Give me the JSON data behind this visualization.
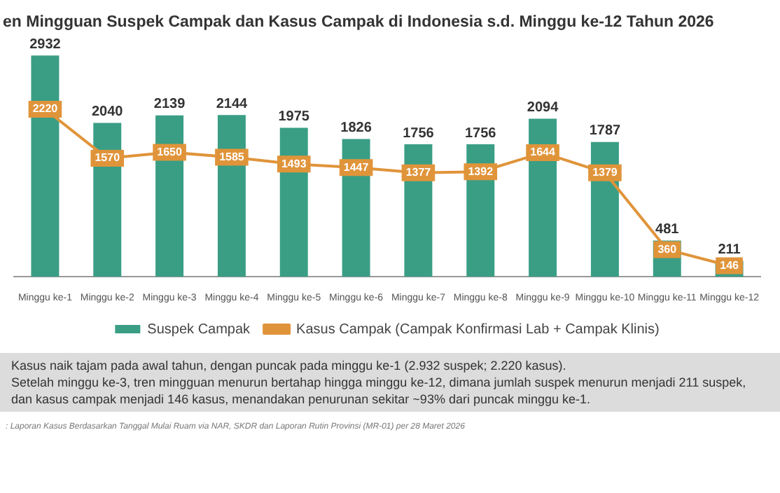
{
  "chart_data": {
    "type": "bar",
    "title": "en Mingguan Suspek Campak dan Kasus Campak di Indonesia s.d. Minggu ke-12 Tahun 2026",
    "categories": [
      "Minggu ke-1",
      "Minggu ke-2",
      "Minggu ke-3",
      "Minggu ke-4",
      "Minggu ke-5",
      "Minggu ke-6",
      "Minggu ke-7",
      "Minggu ke-8",
      "Minggu ke-9",
      "Minggu ke-10",
      "Minggu ke-11",
      "Minggu ke-12"
    ],
    "series": [
      {
        "name": "Suspek Campak",
        "color": "#3a9e85",
        "values": [
          2932,
          2040,
          2139,
          2144,
          1975,
          1826,
          1756,
          1756,
          2094,
          1787,
          481,
          211
        ]
      },
      {
        "name": "Kasus Campak (Campak Konfirmasi Lab + Campak Klinis)",
        "type": "line",
        "marker": "square",
        "color": "#e0943a",
        "values": [
          2220,
          1570,
          1650,
          1585,
          1493,
          1447,
          1377,
          1392,
          1644,
          1379,
          360,
          146
        ]
      }
    ],
    "data_labels": true,
    "legend": "bottom",
    "grid": false,
    "tick_labels": "x",
    "annotations": [
      "Kasus naik tajam pada awal tahun, dengan puncak pada minggu ke-1 (2.932 suspek; 2.220 kasus).",
      "Setelah minggu ke-3, tren mingguan menurun bertahap hingga minggu ke-12, dimana jumlah suspek menurun menjadi 211 suspek, dan kasus campak menjadi 146 kasus, menandakan penurunan sekitar ~93% dari puncak minggu ke-1.",
      ": Laporan Kasus Berdasarkan Tanggal Mulai Ruam via NAR, SKDR dan Laporan Rutin Provinsi (MR-01) per 28 Maret 2026"
    ]
  }
}
